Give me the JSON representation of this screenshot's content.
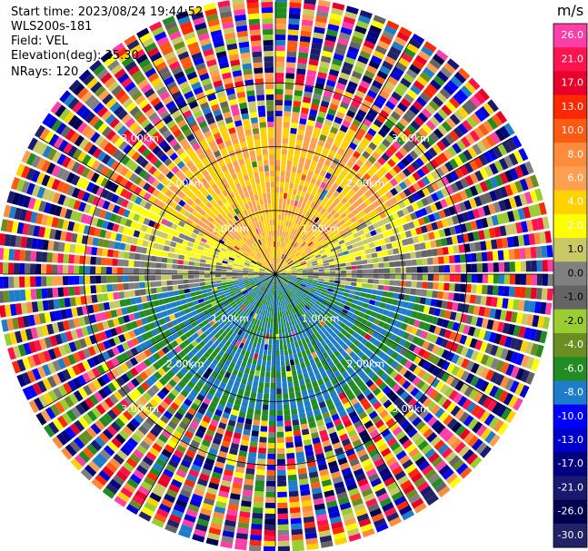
{
  "header": {
    "start_time": "Start time: 2023/08/24 19:44:52",
    "instrument": "WLS200s-181",
    "field": "Field: VEL",
    "elevation": "Elevation(deg): 35.30",
    "nrays": "NRays: 120"
  },
  "colorbar": {
    "unit": "m/s",
    "ticks": [
      "26.0",
      "21.0",
      "17.0",
      "13.0",
      "10.0",
      "8.0",
      "6.0",
      "4.0",
      "2.0",
      "1.0",
      "0.0",
      "-1.0",
      "-2.0",
      "-4.0",
      "-6.0",
      "-8.0",
      "-10.0",
      "-13.0",
      "-17.0",
      "-21.0",
      "-26.0",
      "-30.0"
    ],
    "colors": [
      "#ff3fa8",
      "#ff1450",
      "#e8002a",
      "#ff2800",
      "#ff5a14",
      "#ff8c3c",
      "#ffa050",
      "#ffd200",
      "#ffff00",
      "#c8c864",
      "#808080",
      "#646464",
      "#9acd32",
      "#6b8e23",
      "#228b22",
      "#1e7dc8",
      "#0000ff",
      "#0000cd",
      "#000080",
      "#191970",
      "#000050",
      "#222266"
    ]
  },
  "chart_data": {
    "type": "ppi-velocity",
    "field": "VEL",
    "units": "m/s",
    "nrays": 120,
    "range_rings_km": [
      1.0,
      2.0,
      3.0
    ],
    "ring_labels": [
      "1.00km",
      "2.00km",
      "3.00km"
    ],
    "max_range_km": 5.0,
    "sectors": [
      {
        "name": "north",
        "velocity_m_s": 6.0,
        "desc": "orange"
      },
      {
        "name": "east",
        "velocity_m_s": 2.0,
        "desc": "yellow"
      },
      {
        "name": "west",
        "velocity_m_s": 2.0,
        "desc": "yellow"
      },
      {
        "name": "east-west axis",
        "velocity_m_s": 0.0,
        "desc": "gray"
      },
      {
        "name": "south",
        "velocity_m_s": -6.0,
        "desc": "green"
      }
    ],
    "noise_beyond_km": 3.0
  }
}
